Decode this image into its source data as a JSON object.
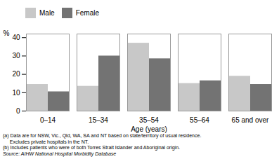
{
  "chart_data": {
    "type": "bar",
    "categories": [
      "0–14",
      "15–34",
      "35–54",
      "55–64",
      "65 and over"
    ],
    "series": [
      {
        "name": "Male",
        "color": "#c8c8c8",
        "values": [
          14.5,
          13.5,
          37,
          15,
          19
        ]
      },
      {
        "name": "Female",
        "color": "#737373",
        "values": [
          10.5,
          30,
          28.5,
          16.5,
          14.5
        ]
      }
    ],
    "ylabel": "%",
    "xlabel": "Age (years)",
    "ylim": [
      0,
      42
    ],
    "yticks": [
      0,
      10,
      20,
      30,
      40
    ],
    "legend": "upper left",
    "grid": false,
    "annotations": [
      "(a) Data are for NSW, Vic., Qld, WA, SA and NT based on state/territory of usual residence.",
      "     Excludes private hospitals in the NT.",
      "(b) Includes patients who were of both Torres Strait Islander and Aboriginal origin.",
      "Source: AIHW National Hospital Morbidity Database"
    ]
  }
}
